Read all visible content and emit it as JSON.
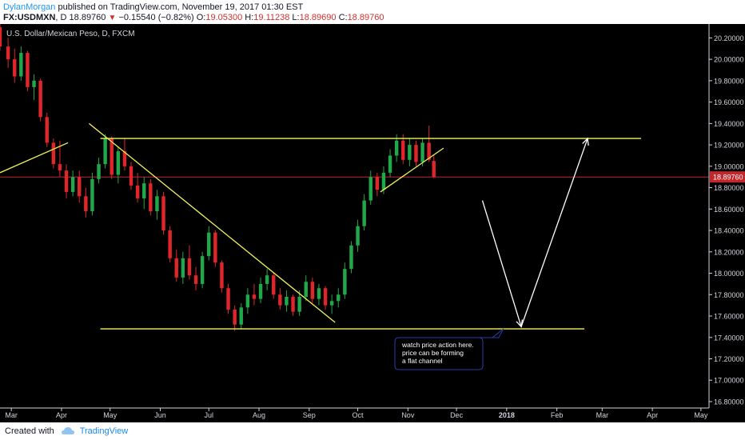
{
  "header": {
    "author": "DylanMorgan",
    "published_on": "published on TradingView.com, November 19, 2017 01:30 EST",
    "symbol": "FX:USDMXN",
    "interval": "D",
    "last_price": "18.89760",
    "change": "−0.15540 (−0.82%)",
    "open_label": "O:",
    "open": "19.05300",
    "high_label": "H:",
    "high": "19.11238",
    "low_label": "L:",
    "low": "18.89690",
    "close_label": "C:",
    "close": "18.89760"
  },
  "colors": {
    "background": "#000000",
    "up": "#21a84a",
    "down": "#e0262b",
    "trendline": "#f2f25c",
    "arrow": "#ffffff",
    "price_line": "#c2272d",
    "callout_border": "#2a3aa8"
  },
  "chart_data": {
    "type": "candlestick",
    "title": "U.S. Dollar/Mexican Peso, D, FXCM",
    "x_labels": [
      "Mar",
      "Apr",
      "May",
      "Jun",
      "Jul",
      "Aug",
      "Sep",
      "Oct",
      "Nov",
      "Dec",
      "2018",
      "Feb",
      "Mar",
      "Apr",
      "May"
    ],
    "y_ticks": [
      "20.20000",
      "20.00000",
      "19.80000",
      "19.60000",
      "19.40000",
      "19.20000",
      "19.00000",
      "18.80000",
      "18.60000",
      "18.40000",
      "18.20000",
      "18.00000",
      "17.80000",
      "17.60000",
      "17.40000",
      "17.20000",
      "17.00000",
      "16.80000"
    ],
    "ylim": [
      16.74,
      20.33
    ],
    "x_range": [
      "2017-02-22",
      "2018-05-06"
    ],
    "grid": false,
    "price_label": "18.89760",
    "candles": [
      {
        "date": "2017-02-22",
        "o": 20.3,
        "h": 20.34,
        "l": 20.08,
        "c": 20.12
      },
      {
        "date": "2017-02-27",
        "o": 20.12,
        "h": 20.2,
        "l": 19.92,
        "c": 20.0
      },
      {
        "date": "2017-03-03",
        "o": 20.0,
        "h": 20.1,
        "l": 19.78,
        "c": 19.84
      },
      {
        "date": "2017-03-07",
        "o": 19.84,
        "h": 20.12,
        "l": 19.8,
        "c": 20.06
      },
      {
        "date": "2017-03-11",
        "o": 20.06,
        "h": 20.08,
        "l": 19.7,
        "c": 19.74
      },
      {
        "date": "2017-03-15",
        "o": 19.74,
        "h": 19.86,
        "l": 19.62,
        "c": 19.8
      },
      {
        "date": "2017-03-19",
        "o": 19.8,
        "h": 19.82,
        "l": 19.42,
        "c": 19.46
      },
      {
        "date": "2017-03-23",
        "o": 19.46,
        "h": 19.5,
        "l": 19.18,
        "c": 19.22
      },
      {
        "date": "2017-03-27",
        "o": 19.22,
        "h": 19.26,
        "l": 18.98,
        "c": 19.02
      },
      {
        "date": "2017-03-31",
        "o": 19.02,
        "h": 19.24,
        "l": 18.9,
        "c": 18.96
      },
      {
        "date": "2017-04-04",
        "o": 18.96,
        "h": 19.02,
        "l": 18.7,
        "c": 18.76
      },
      {
        "date": "2017-04-08",
        "o": 18.76,
        "h": 18.96,
        "l": 18.72,
        "c": 18.9
      },
      {
        "date": "2017-04-12",
        "o": 18.9,
        "h": 18.96,
        "l": 18.66,
        "c": 18.72
      },
      {
        "date": "2017-04-16",
        "o": 18.72,
        "h": 18.8,
        "l": 18.52,
        "c": 18.58
      },
      {
        "date": "2017-04-20",
        "o": 18.58,
        "h": 18.94,
        "l": 18.54,
        "c": 18.88
      },
      {
        "date": "2017-04-24",
        "o": 18.88,
        "h": 19.08,
        "l": 18.84,
        "c": 19.02
      },
      {
        "date": "2017-04-28",
        "o": 19.02,
        "h": 19.3,
        "l": 18.98,
        "c": 19.26
      },
      {
        "date": "2017-05-02",
        "o": 19.26,
        "h": 19.28,
        "l": 18.88,
        "c": 18.92
      },
      {
        "date": "2017-05-06",
        "o": 18.92,
        "h": 19.18,
        "l": 18.84,
        "c": 19.14
      },
      {
        "date": "2017-05-10",
        "o": 19.14,
        "h": 19.26,
        "l": 18.96,
        "c": 19.0
      },
      {
        "date": "2017-05-14",
        "o": 19.0,
        "h": 19.04,
        "l": 18.78,
        "c": 18.82
      },
      {
        "date": "2017-05-18",
        "o": 18.82,
        "h": 18.94,
        "l": 18.66,
        "c": 18.7
      },
      {
        "date": "2017-05-22",
        "o": 18.7,
        "h": 18.9,
        "l": 18.6,
        "c": 18.84
      },
      {
        "date": "2017-05-26",
        "o": 18.84,
        "h": 18.88,
        "l": 18.54,
        "c": 18.58
      },
      {
        "date": "2017-05-30",
        "o": 18.58,
        "h": 18.78,
        "l": 18.5,
        "c": 18.72
      },
      {
        "date": "2017-06-03",
        "o": 18.72,
        "h": 18.76,
        "l": 18.36,
        "c": 18.4
      },
      {
        "date": "2017-06-07",
        "o": 18.4,
        "h": 18.44,
        "l": 18.1,
        "c": 18.14
      },
      {
        "date": "2017-06-11",
        "o": 18.14,
        "h": 18.22,
        "l": 17.92,
        "c": 17.96
      },
      {
        "date": "2017-06-15",
        "o": 17.96,
        "h": 18.2,
        "l": 17.9,
        "c": 18.14
      },
      {
        "date": "2017-06-19",
        "o": 18.14,
        "h": 18.26,
        "l": 17.94,
        "c": 17.98
      },
      {
        "date": "2017-06-23",
        "o": 17.98,
        "h": 18.06,
        "l": 17.84,
        "c": 17.9
      },
      {
        "date": "2017-06-27",
        "o": 17.9,
        "h": 18.2,
        "l": 17.86,
        "c": 18.16
      },
      {
        "date": "2017-07-01",
        "o": 18.16,
        "h": 18.44,
        "l": 18.12,
        "c": 18.38
      },
      {
        "date": "2017-07-05",
        "o": 18.38,
        "h": 18.4,
        "l": 18.06,
        "c": 18.1
      },
      {
        "date": "2017-07-09",
        "o": 18.1,
        "h": 18.12,
        "l": 17.82,
        "c": 17.86
      },
      {
        "date": "2017-07-13",
        "o": 17.86,
        "h": 17.9,
        "l": 17.62,
        "c": 17.66
      },
      {
        "date": "2017-07-17",
        "o": 17.66,
        "h": 17.7,
        "l": 17.46,
        "c": 17.52
      },
      {
        "date": "2017-07-21",
        "o": 17.52,
        "h": 17.72,
        "l": 17.48,
        "c": 17.68
      },
      {
        "date": "2017-07-25",
        "o": 17.68,
        "h": 17.86,
        "l": 17.62,
        "c": 17.8
      },
      {
        "date": "2017-07-29",
        "o": 17.8,
        "h": 17.9,
        "l": 17.7,
        "c": 17.76
      },
      {
        "date": "2017-08-02",
        "o": 17.76,
        "h": 17.96,
        "l": 17.72,
        "c": 17.9
      },
      {
        "date": "2017-08-06",
        "o": 17.9,
        "h": 18.04,
        "l": 17.84,
        "c": 17.98
      },
      {
        "date": "2017-08-10",
        "o": 17.98,
        "h": 18.0,
        "l": 17.76,
        "c": 17.8
      },
      {
        "date": "2017-08-14",
        "o": 17.8,
        "h": 17.86,
        "l": 17.66,
        "c": 17.7
      },
      {
        "date": "2017-08-18",
        "o": 17.7,
        "h": 17.84,
        "l": 17.64,
        "c": 17.78
      },
      {
        "date": "2017-08-22",
        "o": 17.78,
        "h": 17.8,
        "l": 17.6,
        "c": 17.64
      },
      {
        "date": "2017-08-26",
        "o": 17.64,
        "h": 17.84,
        "l": 17.6,
        "c": 17.78
      },
      {
        "date": "2017-08-30",
        "o": 17.78,
        "h": 17.98,
        "l": 17.74,
        "c": 17.92
      },
      {
        "date": "2017-09-03",
        "o": 17.92,
        "h": 17.96,
        "l": 17.72,
        "c": 17.76
      },
      {
        "date": "2017-09-07",
        "o": 17.76,
        "h": 17.9,
        "l": 17.7,
        "c": 17.86
      },
      {
        "date": "2017-09-11",
        "o": 17.86,
        "h": 17.88,
        "l": 17.66,
        "c": 17.7
      },
      {
        "date": "2017-09-15",
        "o": 17.7,
        "h": 17.8,
        "l": 17.62,
        "c": 17.74
      },
      {
        "date": "2017-09-19",
        "o": 17.74,
        "h": 17.86,
        "l": 17.68,
        "c": 17.8
      },
      {
        "date": "2017-09-23",
        "o": 17.8,
        "h": 18.1,
        "l": 17.76,
        "c": 18.04
      },
      {
        "date": "2017-09-27",
        "o": 18.04,
        "h": 18.3,
        "l": 18.0,
        "c": 18.26
      },
      {
        "date": "2017-10-01",
        "o": 18.26,
        "h": 18.5,
        "l": 18.2,
        "c": 18.44
      },
      {
        "date": "2017-10-05",
        "o": 18.44,
        "h": 18.74,
        "l": 18.4,
        "c": 18.68
      },
      {
        "date": "2017-10-09",
        "o": 18.68,
        "h": 18.96,
        "l": 18.64,
        "c": 18.9
      },
      {
        "date": "2017-10-13",
        "o": 18.9,
        "h": 18.94,
        "l": 18.72,
        "c": 18.78
      },
      {
        "date": "2017-10-17",
        "o": 18.78,
        "h": 19.0,
        "l": 18.74,
        "c": 18.94
      },
      {
        "date": "2017-10-21",
        "o": 18.94,
        "h": 19.16,
        "l": 18.9,
        "c": 19.1
      },
      {
        "date": "2017-10-25",
        "o": 19.1,
        "h": 19.3,
        "l": 19.04,
        "c": 19.24
      },
      {
        "date": "2017-10-29",
        "o": 19.24,
        "h": 19.3,
        "l": 19.02,
        "c": 19.06
      },
      {
        "date": "2017-11-02",
        "o": 19.06,
        "h": 19.26,
        "l": 19.0,
        "c": 19.2
      },
      {
        "date": "2017-11-06",
        "o": 19.2,
        "h": 19.24,
        "l": 19.0,
        "c": 19.04
      },
      {
        "date": "2017-11-10",
        "o": 19.04,
        "h": 19.26,
        "l": 19.0,
        "c": 19.22
      },
      {
        "date": "2017-11-14",
        "o": 19.22,
        "h": 19.38,
        "l": 19.04,
        "c": 19.06
      },
      {
        "date": "2017-11-17",
        "o": 19.05,
        "h": 19.11,
        "l": 18.89,
        "c": 18.9
      }
    ],
    "drawings": {
      "trendlines": [
        {
          "from": [
            "2017-02-22",
            18.94
          ],
          "to": [
            "2017-04-05",
            19.22
          ]
        },
        {
          "from": [
            "2017-04-25",
            19.26
          ],
          "to": [
            "2018-03-25",
            19.26
          ]
        },
        {
          "from": [
            "2017-04-18",
            19.4
          ],
          "to": [
            "2017-09-17",
            17.54
          ]
        },
        {
          "from": [
            "2017-04-25",
            17.48
          ],
          "to": [
            "2018-02-18",
            17.48
          ]
        },
        {
          "from": [
            "2017-10-15",
            18.76
          ],
          "to": [
            "2017-11-23",
            19.17
          ]
        }
      ],
      "arrows": [
        {
          "from": [
            "2017-12-17",
            18.68
          ],
          "to": [
            "2018-01-10",
            17.5
          ]
        },
        {
          "from": [
            "2018-01-10",
            17.5
          ],
          "to": [
            "2018-02-20",
            19.26
          ]
        }
      ],
      "callout": {
        "lines": [
          "watch price action here.",
          "price can be forming",
          "a flat channel"
        ],
        "anchor": [
          "2017-12-30",
          17.48
        ]
      }
    }
  },
  "footer": {
    "created_with": "Created with",
    "brand": "TradingView"
  }
}
